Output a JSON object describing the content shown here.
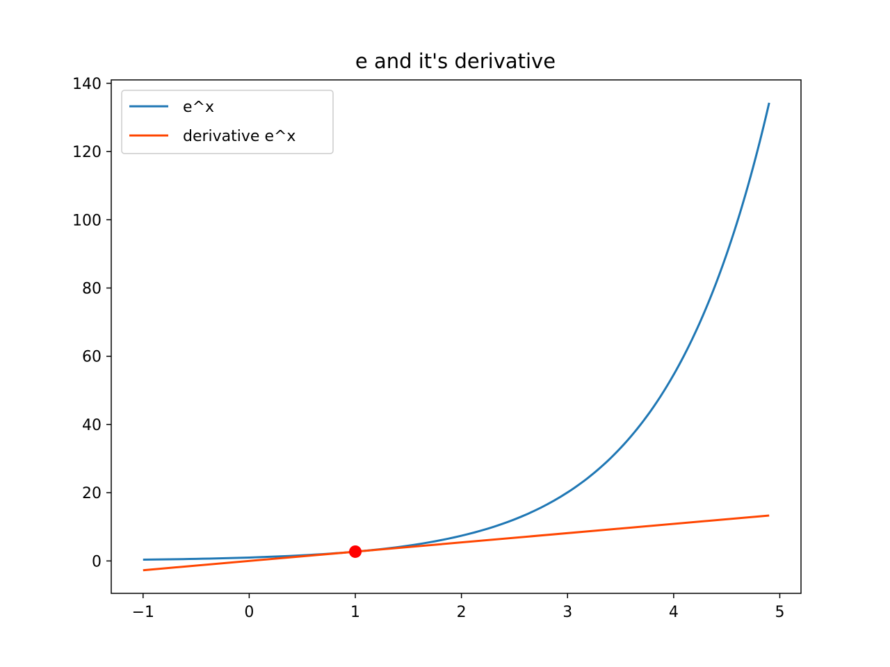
{
  "chart_data": {
    "type": "line",
    "title": "e and it's derivative",
    "xlabel": "",
    "ylabel": "",
    "xlim": [
      -1.3,
      5.2
    ],
    "ylim": [
      -9.5,
      141
    ],
    "x_ticks": [
      -1,
      0,
      1,
      2,
      3,
      4,
      5
    ],
    "x_tick_labels": [
      "−1",
      "0",
      "1",
      "2",
      "3",
      "4",
      "5"
    ],
    "y_ticks": [
      0,
      20,
      40,
      60,
      80,
      100,
      120,
      140
    ],
    "y_tick_labels": [
      "0",
      "20",
      "40",
      "60",
      "80",
      "100",
      "120",
      "140"
    ],
    "grid": false,
    "legend_position": "top-left",
    "series": [
      {
        "name": "e^x",
        "color": "#1f77b4",
        "x": [
          -1.0,
          -0.5,
          0.0,
          0.5,
          1.0,
          1.5,
          2.0,
          2.5,
          3.0,
          3.25,
          3.5,
          3.75,
          4.0,
          4.2,
          4.4,
          4.6,
          4.8,
          4.9
        ],
        "y": [
          0.37,
          0.61,
          1.0,
          1.65,
          2.72,
          4.48,
          7.39,
          12.18,
          20.09,
          25.79,
          33.12,
          42.52,
          54.6,
          66.69,
          81.45,
          99.48,
          121.51,
          134.29
        ]
      },
      {
        "name": "derivative e^x",
        "color": "#ff4500",
        "x": [
          -1.0,
          4.9
        ],
        "y": [
          -2.72,
          13.32
        ]
      }
    ],
    "points": [
      {
        "x": 1.0,
        "y": 2.72,
        "color": "#ff0000"
      }
    ]
  }
}
